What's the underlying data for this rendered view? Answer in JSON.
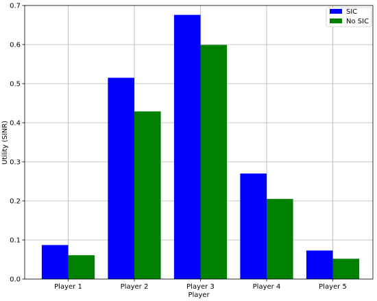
{
  "chart_data": {
    "type": "bar",
    "title": "",
    "xlabel": "Player",
    "ylabel": "Utility (SINR)",
    "categories": [
      "Player 1",
      "Player 2",
      "Player 3",
      "Player 4",
      "Player 5"
    ],
    "series": [
      {
        "name": "SIC",
        "color": "#0000ff",
        "values": [
          0.087,
          0.515,
          0.676,
          0.27,
          0.073
        ]
      },
      {
        "name": "No SIC",
        "color": "#008000",
        "values": [
          0.061,
          0.429,
          0.599,
          0.205,
          0.052
        ]
      }
    ],
    "ylim": [
      0,
      0.7
    ],
    "yticks": [
      "0.0",
      "0.1",
      "0.2",
      "0.3",
      "0.4",
      "0.5",
      "0.6",
      "0.7"
    ],
    "grid": true,
    "legend_position": "top-right"
  }
}
